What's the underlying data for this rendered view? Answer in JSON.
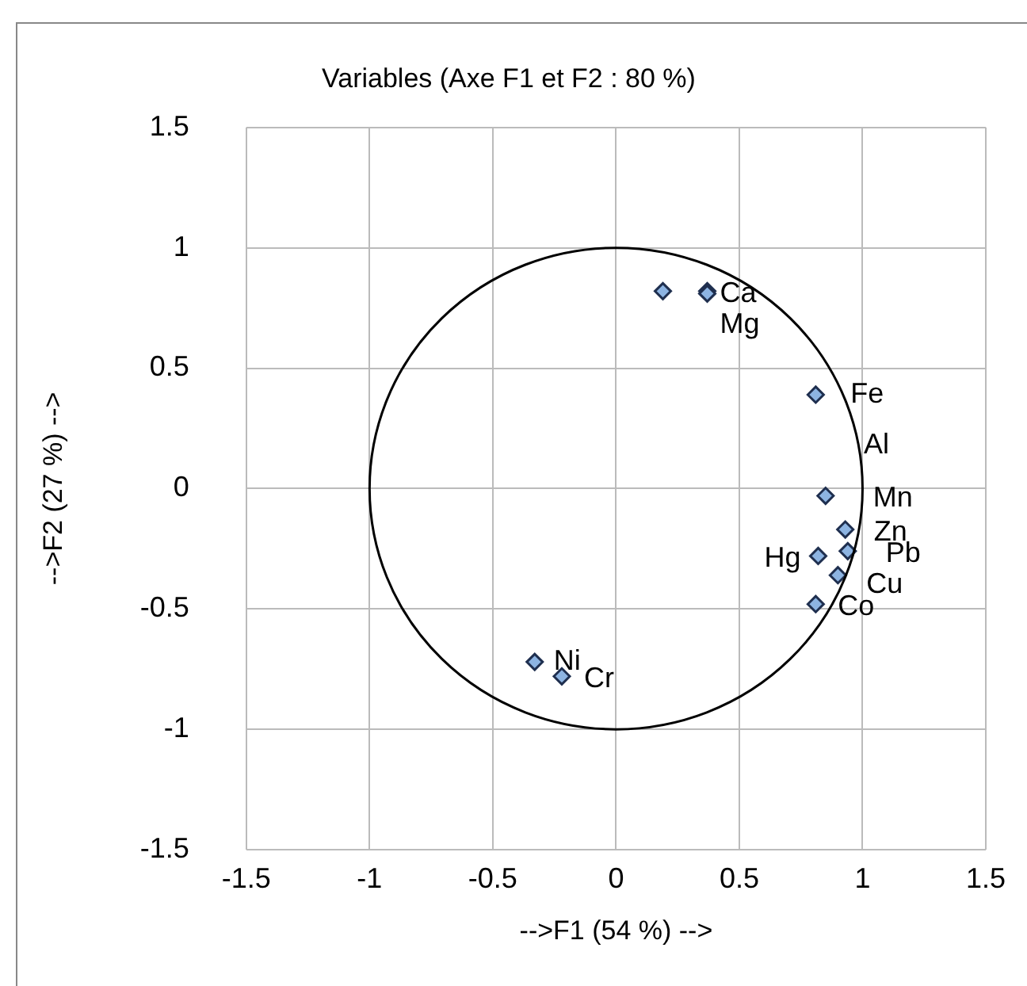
{
  "chart_data": {
    "type": "scatter",
    "title": "Variables (Axe F1 et F2 : 80 %)",
    "xlabel": "-->F1 (54 %) -->",
    "ylabel": "-->F2 (27 %) -->",
    "series": [
      {
        "color": "#8db4e2",
        "x": [
          0.19,
          0.37,
          0.37,
          0.81,
          0.85,
          0.93,
          0.94,
          0.82,
          0.9,
          0.81,
          -0.33,
          -0.22
        ],
        "values": [
          0.82,
          0.82,
          0.81,
          0.39,
          -0.03,
          -0.17,
          -0.26,
          -0.28,
          -0.36,
          -0.48,
          -0.72,
          -0.78
        ]
      }
    ],
    "annotations": [
      {
        "text": "Ca",
        "x": 0.37,
        "y": 0.82
      },
      {
        "text": "Mg",
        "x": 0.37,
        "y": 0.81
      },
      {
        "text": "Fe",
        "x": 0.81,
        "y": 0.39
      },
      "Al",
      {
        "text": "Mn",
        "x": 0.85,
        "y": -0.03
      },
      {
        "text": "Zn",
        "x": 0.93,
        "y": -0.17
      },
      {
        "text": "Pb",
        "x": 0.94,
        "y": -0.26
      },
      {
        "text": "Hg",
        "x": 0.82,
        "y": -0.28
      },
      {
        "text": "Cu",
        "x": 0.9,
        "y": -0.36
      },
      {
        "text": "Co",
        "x": 0.81,
        "y": -0.48
      },
      {
        "text": "Ni",
        "x": -0.33,
        "y": -0.72
      },
      {
        "text": "Cr",
        "x": -0.22,
        "y": -0.78
      }
    ],
    "xlim": [
      -1.5,
      1.5
    ],
    "xticks": [
      -1.5,
      -1,
      -0.5,
      0,
      0.5,
      1,
      1.5
    ],
    "ylim": [
      -1.5,
      1.5
    ],
    "yticks": [
      -1.5,
      -1,
      -0.5,
      0,
      0.5,
      1,
      1.5
    ],
    "grid": true,
    "legend": false,
    "marker": "diamond"
  }
}
